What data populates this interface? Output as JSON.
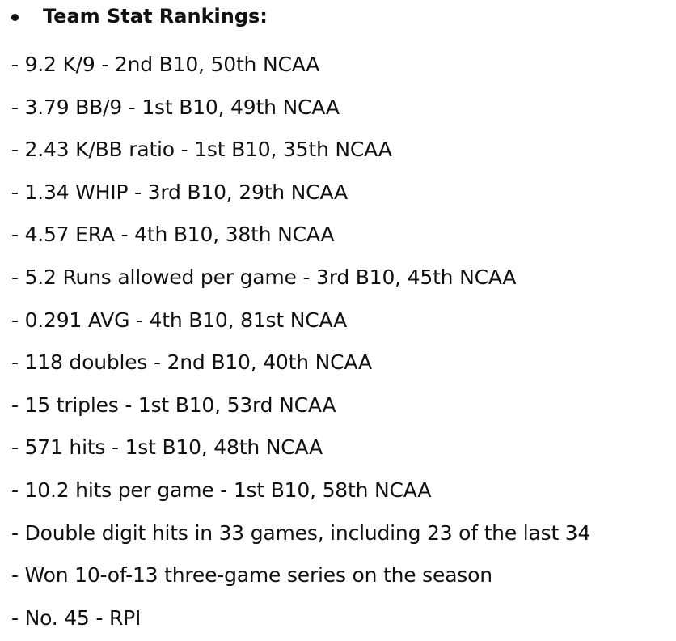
{
  "section": {
    "heading": "Team Stat Rankings:",
    "lines": [
      "- 9.2 K/9 - 2nd B10, 50th NCAA",
      "- 3.79 BB/9 - 1st B10, 49th NCAA",
      "- 2.43 K/BB ratio - 1st B10, 35th NCAA",
      "- 1.34 WHIP - 3rd B10, 29th NCAA",
      "- 4.57 ERA - 4th B10, 38th NCAA",
      "- 5.2 Runs allowed per game - 3rd B10, 45th NCAA",
      "- 0.291 AVG - 4th B10, 81st NCAA",
      "- 118 doubles - 2nd B10, 40th NCAA",
      "- 15 triples - 1st B10, 53rd NCAA",
      "- 571 hits - 1st B10, 48th NCAA",
      "- 10.2 hits per game - 1st B10, 58th NCAA",
      "- Double digit hits in 33 games, including 23 of the last 34",
      "- Won 10-of-13 three-game series on the season",
      "- No. 45 - RPI"
    ]
  }
}
